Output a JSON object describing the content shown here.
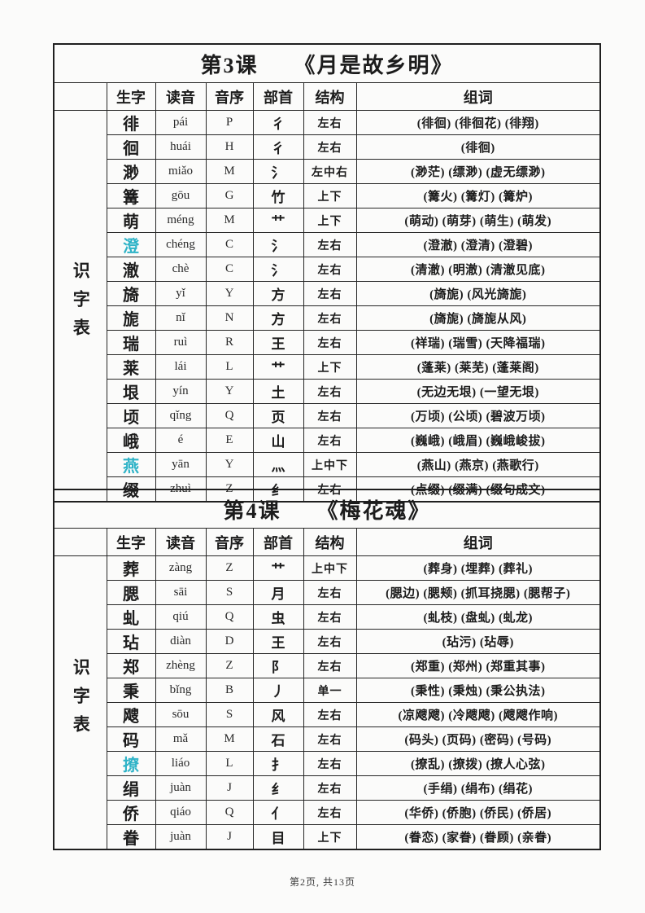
{
  "page": {
    "footer": "第2页, 共13页",
    "highlight_color": "#2fb3c7"
  },
  "tables": [
    {
      "title_lesson": "第3课",
      "title_book": "《月是故乡明》",
      "side_label": "识字表",
      "headers": [
        "生字",
        "读音",
        "音序",
        "部首",
        "结构",
        "组词"
      ],
      "rows": [
        {
          "char": "徘",
          "highlight": false,
          "pinyin": "pái",
          "initial": "P",
          "radical": "彳",
          "structure": "左右",
          "words": "(徘徊) (徘徊花) (徘翔)"
        },
        {
          "char": "徊",
          "highlight": false,
          "pinyin": "huái",
          "initial": "H",
          "radical": "彳",
          "structure": "左右",
          "words": "(徘徊)"
        },
        {
          "char": "渺",
          "highlight": false,
          "pinyin": "miǎo",
          "initial": "M",
          "radical": "氵",
          "structure": "左中右",
          "words": "(渺茫) (缥渺) (虚无缥渺)"
        },
        {
          "char": "篝",
          "highlight": false,
          "pinyin": "gōu",
          "initial": "G",
          "radical": "竹",
          "structure": "上下",
          "words": "(篝火) (篝灯) (篝炉)"
        },
        {
          "char": "萌",
          "highlight": false,
          "pinyin": "méng",
          "initial": "M",
          "radical": "艹",
          "structure": "上下",
          "words": "(萌动) (萌芽) (萌生) (萌发)"
        },
        {
          "char": "澄",
          "highlight": true,
          "pinyin": "chéng",
          "initial": "C",
          "radical": "氵",
          "structure": "左右",
          "words": "(澄澈) (澄清) (澄碧)"
        },
        {
          "char": "澈",
          "highlight": false,
          "pinyin": "chè",
          "initial": "C",
          "radical": "氵",
          "structure": "左右",
          "words": "(清澈) (明澈) (清澈见底)"
        },
        {
          "char": "旖",
          "highlight": false,
          "pinyin": "yǐ",
          "initial": "Y",
          "radical": "方",
          "structure": "左右",
          "words": "(旖旎) (风光旖旎)"
        },
        {
          "char": "旎",
          "highlight": false,
          "pinyin": "nǐ",
          "initial": "N",
          "radical": "方",
          "structure": "左右",
          "words": "(旖旎) (旖旎从风)"
        },
        {
          "char": "瑞",
          "highlight": false,
          "pinyin": "ruì",
          "initial": "R",
          "radical": "王",
          "structure": "左右",
          "words": "(祥瑞) (瑞雪) (天降福瑞)"
        },
        {
          "char": "莱",
          "highlight": false,
          "pinyin": "lái",
          "initial": "L",
          "radical": "艹",
          "structure": "上下",
          "words": "(蓬莱) (莱芜) (蓬莱阁)"
        },
        {
          "char": "垠",
          "highlight": false,
          "pinyin": "yín",
          "initial": "Y",
          "radical": "土",
          "structure": "左右",
          "words": "(无边无垠) (一望无垠)"
        },
        {
          "char": "顷",
          "highlight": false,
          "pinyin": "qǐng",
          "initial": "Q",
          "radical": "页",
          "structure": "左右",
          "words": "(万顷) (公顷) (碧波万顷)"
        },
        {
          "char": "峨",
          "highlight": false,
          "pinyin": "é",
          "initial": "E",
          "radical": "山",
          "structure": "左右",
          "words": "(巍峨) (峨眉) (巍峨峻拔)"
        },
        {
          "char": "燕",
          "highlight": true,
          "pinyin": "yān",
          "initial": "Y",
          "radical": "灬",
          "structure": "上中下",
          "words": "(燕山) (燕京) (燕歌行)"
        },
        {
          "char": "缀",
          "highlight": false,
          "pinyin": "zhuì",
          "initial": "Z",
          "radical": "纟",
          "structure": "左右",
          "words": "(点缀) (缀满) (缀句成文)"
        }
      ]
    },
    {
      "title_lesson": "第4课",
      "title_book": "《梅花魂》",
      "side_label": "识字表",
      "headers": [
        "生字",
        "读音",
        "音序",
        "部首",
        "结构",
        "组词"
      ],
      "rows": [
        {
          "char": "葬",
          "highlight": false,
          "pinyin": "zàng",
          "initial": "Z",
          "radical": "艹",
          "structure": "上中下",
          "words": "(葬身) (埋葬) (葬礼)"
        },
        {
          "char": "腮",
          "highlight": false,
          "pinyin": "sāi",
          "initial": "S",
          "radical": "月",
          "structure": "左右",
          "words": "(腮边) (腮颊) (抓耳挠腮) (腮帮子)"
        },
        {
          "char": "虬",
          "highlight": false,
          "pinyin": "qiú",
          "initial": "Q",
          "radical": "虫",
          "structure": "左右",
          "words": "(虬枝) (盘虬) (虬龙)"
        },
        {
          "char": "玷",
          "highlight": false,
          "pinyin": "diàn",
          "initial": "D",
          "radical": "王",
          "structure": "左右",
          "words": "(玷污) (玷辱)"
        },
        {
          "char": "郑",
          "highlight": false,
          "pinyin": "zhèng",
          "initial": "Z",
          "radical": "阝",
          "structure": "左右",
          "words": "(郑重) (郑州) (郑重其事)"
        },
        {
          "char": "秉",
          "highlight": false,
          "pinyin": "bǐng",
          "initial": "B",
          "radical": "丿",
          "structure": "单一",
          "words": "(秉性) (秉烛) (秉公执法)"
        },
        {
          "char": "飕",
          "highlight": false,
          "pinyin": "sōu",
          "initial": "S",
          "radical": "风",
          "structure": "左右",
          "words": "(凉飕飕) (冷飕飕) (飕飕作响)"
        },
        {
          "char": "码",
          "highlight": false,
          "pinyin": "mǎ",
          "initial": "M",
          "radical": "石",
          "structure": "左右",
          "words": "(码头) (页码) (密码) (号码)"
        },
        {
          "char": "撩",
          "highlight": true,
          "pinyin": "liáo",
          "initial": "L",
          "radical": "扌",
          "structure": "左右",
          "words": "(撩乱) (撩拨) (撩人心弦)"
        },
        {
          "char": "绢",
          "highlight": false,
          "pinyin": "juàn",
          "initial": "J",
          "radical": "纟",
          "structure": "左右",
          "words": "(手绢) (绢布) (绢花)"
        },
        {
          "char": "侨",
          "highlight": false,
          "pinyin": "qiáo",
          "initial": "Q",
          "radical": "亻",
          "structure": "左右",
          "words": "(华侨) (侨胞) (侨民) (侨居)"
        },
        {
          "char": "眷",
          "highlight": false,
          "pinyin": "juàn",
          "initial": "J",
          "radical": "目",
          "structure": "上下",
          "words": "(眷恋) (家眷) (眷顾) (亲眷)"
        }
      ]
    }
  ]
}
